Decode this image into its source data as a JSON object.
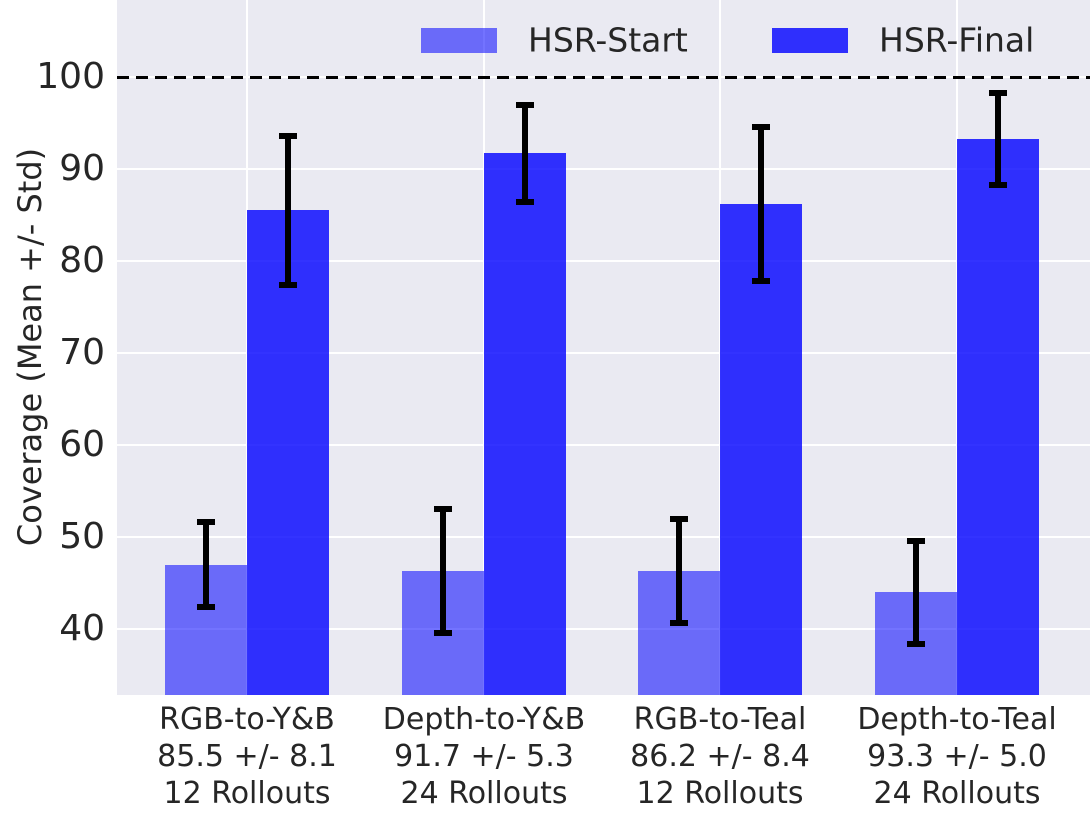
{
  "colors": {
    "figure_bg": "#ffffff",
    "plot_bg": "#eaeaf2",
    "gridline": "#ffffff",
    "text": "#262626",
    "error_bar": "#000000",
    "reference_line": "#000000",
    "hsr_start_rendered": "#7276f5",
    "hsr_final_rendered": "#2e31f7"
  },
  "chart_data": {
    "type": "bar",
    "title": "",
    "xlabel": "",
    "ylabel": "Coverage (Mean +/- Std)",
    "ylim": [
      32.8,
      108.4
    ],
    "yticks": [
      40,
      50,
      60,
      70,
      80,
      90,
      100
    ],
    "grid": true,
    "reference_line": {
      "value": 100,
      "style": "dashed",
      "color": "#000000"
    },
    "legend": {
      "position": "upper center inside",
      "frame": false
    },
    "categories": [
      {
        "lines": [
          "RGB-to-Y&B",
          "85.5 +/- 8.1",
          "12 Rollouts"
        ]
      },
      {
        "lines": [
          "Depth-to-Y&B",
          "91.7 +/- 5.3",
          "24 Rollouts"
        ]
      },
      {
        "lines": [
          "RGB-to-Teal",
          "86.2 +/- 8.4",
          "12 Rollouts"
        ]
      },
      {
        "lines": [
          "Depth-to-Teal",
          "93.3 +/- 5.0",
          "24 Rollouts"
        ]
      }
    ],
    "series": [
      {
        "name": "HSR-Start",
        "color": "#0000ff",
        "alpha": 0.55,
        "values": [
          47.0,
          46.3,
          46.3,
          44.0
        ],
        "errors": [
          4.6,
          6.7,
          5.7,
          5.6
        ]
      },
      {
        "name": "HSR-Final",
        "color": "#0000ff",
        "alpha": 0.8,
        "values": [
          85.5,
          91.7,
          86.2,
          93.3
        ],
        "errors": [
          8.1,
          5.3,
          8.4,
          5.0
        ]
      }
    ]
  }
}
